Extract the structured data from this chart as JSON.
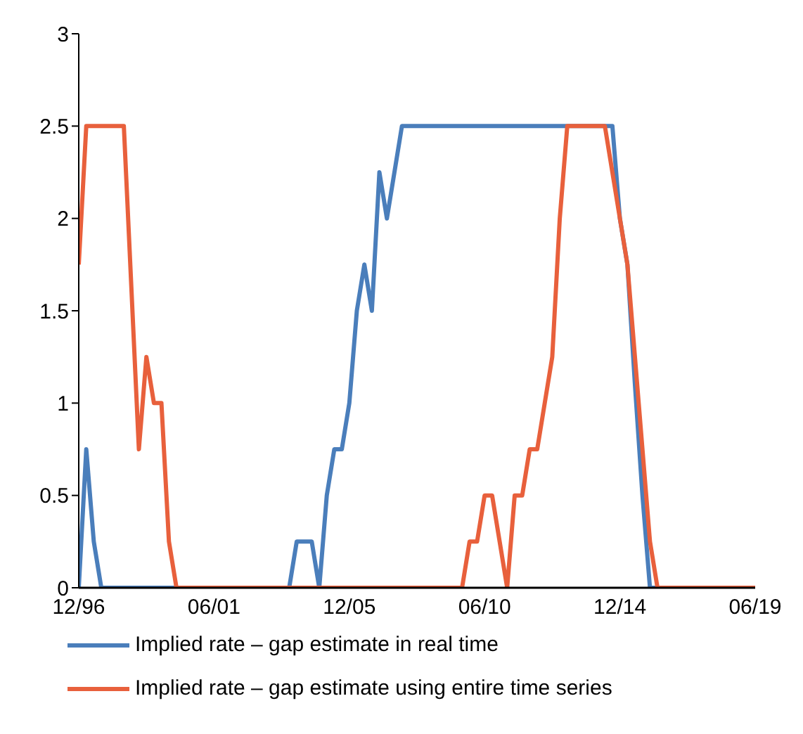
{
  "chart_data": {
    "type": "line",
    "xlim": [
      "1996-12",
      "2019-06"
    ],
    "xticks": [
      {
        "value": "1996-12",
        "label": "12/96"
      },
      {
        "value": "2001-06",
        "label": "06/01"
      },
      {
        "value": "2005-12",
        "label": "12/05"
      },
      {
        "value": "2010-06",
        "label": "06/10"
      },
      {
        "value": "2014-12",
        "label": "12/14"
      },
      {
        "value": "2019-06",
        "label": "06/19"
      }
    ],
    "ylim": [
      0,
      3
    ],
    "yticks": [
      0,
      0.5,
      1,
      1.5,
      2,
      2.5,
      3
    ],
    "legend": "bottom",
    "marker": "none",
    "line_style": "solid",
    "series": [
      {
        "name": "Implied rate – gap estimate in real time",
        "color": "#4a7ebb",
        "x": [
          "1996-12",
          "1997-03",
          "1997-06",
          "1997-09",
          "2003-12",
          "2004-03",
          "2004-09",
          "2004-12",
          "2005-03",
          "2005-06",
          "2005-09",
          "2005-12",
          "2006-03",
          "2006-06",
          "2006-09",
          "2006-12",
          "2007-03",
          "2007-06",
          "2007-09",
          "2014-09",
          "2014-12",
          "2015-03",
          "2015-06",
          "2015-09",
          "2015-12",
          "2019-06"
        ],
        "values": [
          0,
          0.75,
          0.25,
          0,
          0,
          0.25,
          0.25,
          0,
          0.5,
          0.75,
          0.75,
          1,
          1.5,
          1.75,
          1.5,
          2.25,
          2,
          2.25,
          2.5,
          2.5,
          2,
          1.75,
          1.1,
          0.5,
          0,
          0
        ]
      },
      {
        "name": "Implied rate – gap estimate using entire time series",
        "color": "#e8603c",
        "x": [
          "1996-12",
          "1997-03",
          "1998-06",
          "1998-12",
          "1999-03",
          "1999-06",
          "1999-09",
          "1999-12",
          "2000-03",
          "2009-09",
          "2009-12",
          "2010-03",
          "2010-06",
          "2010-09",
          "2010-12",
          "2011-03",
          "2011-06",
          "2011-09",
          "2011-12",
          "2012-03",
          "2012-06",
          "2012-09",
          "2012-12",
          "2013-03",
          "2014-06",
          "2014-12",
          "2015-03",
          "2015-06",
          "2015-09",
          "2015-12",
          "2016-03",
          "2019-06"
        ],
        "values": [
          1.75,
          2.5,
          2.5,
          0.75,
          1.25,
          1,
          1,
          0.25,
          0,
          0,
          0.25,
          0.25,
          0.5,
          0.5,
          0.25,
          0,
          0.5,
          0.5,
          0.75,
          0.75,
          1,
          1.25,
          2,
          2.5,
          2.5,
          2,
          1.75,
          1.25,
          0.75,
          0.25,
          0,
          0
        ]
      }
    ]
  }
}
